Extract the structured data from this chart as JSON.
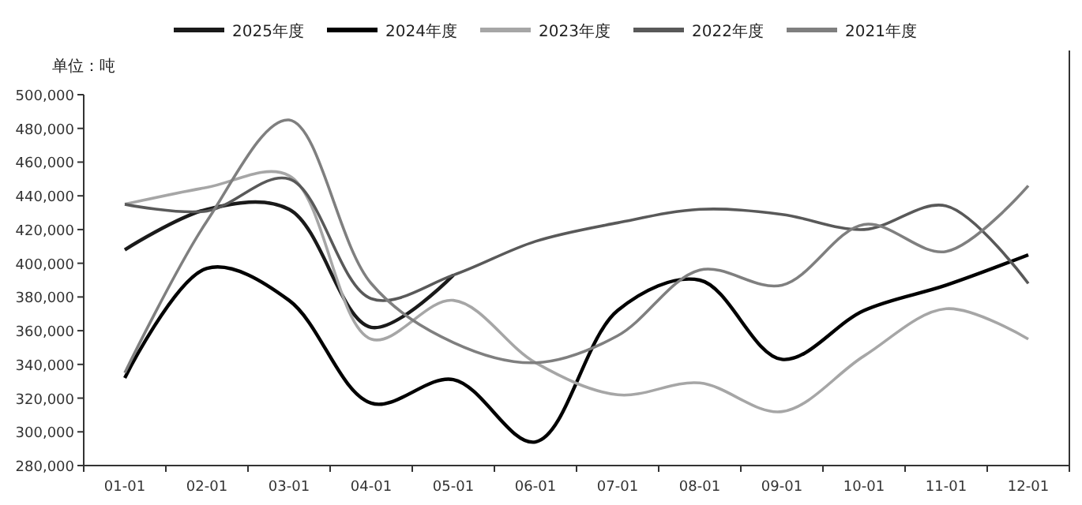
{
  "chart_data": {
    "type": "line",
    "categories": [
      "01-01",
      "02-01",
      "03-01",
      "04-01",
      "05-01",
      "06-01",
      "07-01",
      "08-01",
      "09-01",
      "10-01",
      "11-01",
      "12-01"
    ],
    "series": [
      {
        "name": "2025年度",
        "color": "#1a1a1a",
        "values": [
          408000,
          432000,
          432000,
          362000,
          393000,
          null,
          null,
          null,
          null,
          null,
          null,
          null
        ]
      },
      {
        "name": "2024年度",
        "color": "#000000",
        "values": [
          332000,
          397000,
          378000,
          317000,
          331000,
          294000,
          372000,
          390000,
          343000,
          372000,
          387000,
          405000
        ]
      },
      {
        "name": "2023年度",
        "color": "#a6a6a6",
        "values": [
          435000,
          445000,
          452000,
          355000,
          378000,
          341000,
          322000,
          329000,
          312000,
          345000,
          373000,
          355000
        ]
      },
      {
        "name": "2022年度",
        "color": "#595959",
        "values": [
          435000,
          431000,
          450000,
          379000,
          393000,
          413000,
          424000,
          432000,
          429000,
          420000,
          434000,
          388000
        ]
      },
      {
        "name": "2021年度",
        "color": "#7f7f7f",
        "values": [
          335000,
          425000,
          485000,
          388000,
          353000,
          341000,
          357000,
          396000,
          387000,
          423000,
          407000,
          446000
        ]
      }
    ],
    "ylim": [
      280000,
      500000
    ],
    "yticks": [
      {
        "value": 280000,
        "label": "280,000"
      },
      {
        "value": 300000,
        "label": "300,000"
      },
      {
        "value": 320000,
        "label": "320,000"
      },
      {
        "value": 340000,
        "label": "340,000"
      },
      {
        "value": 360000,
        "label": "360,000"
      },
      {
        "value": 380000,
        "label": "380,000"
      },
      {
        "value": 400000,
        "label": "400,000"
      },
      {
        "value": 420000,
        "label": "420,000"
      },
      {
        "value": 440000,
        "label": "440,000"
      },
      {
        "value": 460000,
        "label": "460,000"
      },
      {
        "value": 480000,
        "label": "480,000"
      },
      {
        "value": 500000,
        "label": "500,000"
      }
    ],
    "annotations": [
      "单位：吨"
    ],
    "legend": "top",
    "grid": false,
    "marker": "none",
    "line_style": "solid"
  }
}
